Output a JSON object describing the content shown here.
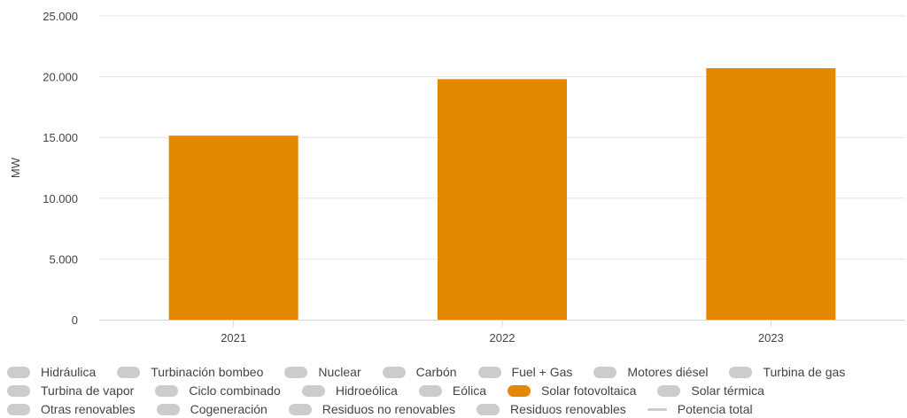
{
  "chart_data": {
    "type": "bar",
    "categories": [
      "2021",
      "2022",
      "2023"
    ],
    "series": [
      {
        "name": "Solar fotovoltaica",
        "values": [
          15150,
          19800,
          20700
        ],
        "color": "#E38800"
      }
    ],
    "ylabel": "MW",
    "ylim": [
      0,
      25000
    ],
    "yticks": [
      0,
      5000,
      10000,
      15000,
      20000,
      25000
    ],
    "ytick_labels": [
      "0",
      "5.000",
      "10.000",
      "15.000",
      "20.000",
      "25.000"
    ],
    "grid": true,
    "legend_position": "bottom"
  },
  "legend": {
    "rows": [
      [
        {
          "label": "Hidráulica",
          "active": false,
          "kind": "pill"
        },
        {
          "label": "Turbinación bombeo",
          "active": false,
          "kind": "pill"
        },
        {
          "label": "Nuclear",
          "active": false,
          "kind": "pill"
        },
        {
          "label": "Carbón",
          "active": false,
          "kind": "pill"
        },
        {
          "label": "Fuel + Gas",
          "active": false,
          "kind": "pill"
        },
        {
          "label": "Motores diésel",
          "active": false,
          "kind": "pill"
        },
        {
          "label": "Turbina de gas",
          "active": false,
          "kind": "pill"
        }
      ],
      [
        {
          "label": "Turbina de vapor",
          "active": false,
          "kind": "pill"
        },
        {
          "label": "Ciclo combinado",
          "active": false,
          "kind": "pill"
        },
        {
          "label": "Hidroeólica",
          "active": false,
          "kind": "pill"
        },
        {
          "label": "Eólica",
          "active": false,
          "kind": "pill"
        },
        {
          "label": "Solar fotovoltaica",
          "active": true,
          "kind": "pill",
          "color": "#E38800"
        },
        {
          "label": "Solar térmica",
          "active": false,
          "kind": "pill"
        }
      ],
      [
        {
          "label": "Otras renovables",
          "active": false,
          "kind": "pill"
        },
        {
          "label": "Cogeneración",
          "active": false,
          "kind": "pill"
        },
        {
          "label": "Residuos no renovables",
          "active": false,
          "kind": "pill"
        },
        {
          "label": "Residuos renovables",
          "active": false,
          "kind": "pill"
        },
        {
          "label": "Potencia total",
          "active": false,
          "kind": "line"
        }
      ]
    ],
    "inactive_color": "#cccccc"
  }
}
